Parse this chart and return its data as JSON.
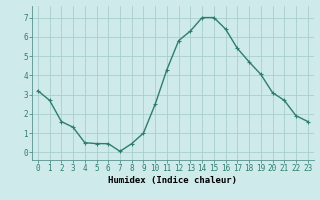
{
  "x": [
    0,
    1,
    2,
    3,
    4,
    5,
    6,
    7,
    8,
    9,
    10,
    11,
    12,
    13,
    14,
    15,
    16,
    17,
    18,
    19,
    20,
    21,
    22,
    23
  ],
  "y": [
    3.2,
    2.7,
    1.6,
    1.3,
    0.5,
    0.45,
    0.45,
    0.05,
    0.45,
    1.0,
    2.5,
    4.3,
    5.8,
    6.3,
    7.0,
    7.0,
    6.4,
    5.4,
    4.7,
    4.05,
    3.1,
    2.7,
    1.9,
    1.6
  ],
  "line_color": "#2e7d6e",
  "marker": "+",
  "marker_size": 3,
  "bg_color": "#ceeaea",
  "grid_color": "#aacece",
  "xlabel": "Humidex (Indice chaleur)",
  "xlim": [
    -0.5,
    23.5
  ],
  "ylim": [
    -0.4,
    7.6
  ],
  "yticks": [
    0,
    1,
    2,
    3,
    4,
    5,
    6,
    7
  ],
  "xticks": [
    0,
    1,
    2,
    3,
    4,
    5,
    6,
    7,
    8,
    9,
    10,
    11,
    12,
    13,
    14,
    15,
    16,
    17,
    18,
    19,
    20,
    21,
    22,
    23
  ],
  "xlabel_fontsize": 6.5,
  "tick_fontsize": 5.5,
  "line_width": 1.0
}
